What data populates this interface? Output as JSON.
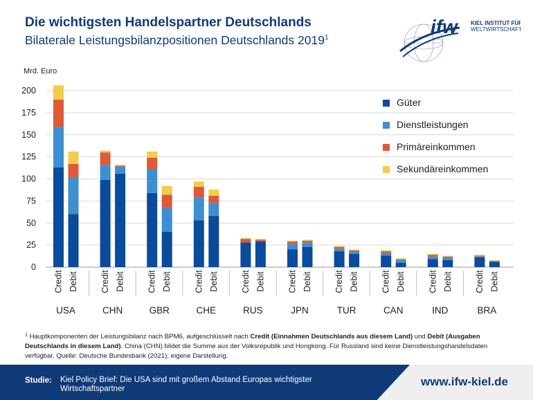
{
  "header": {
    "title": "Die wichtigsten Handelspartner Deutschlands",
    "subtitle": "Bilaterale Leistungsbilanzpositionen Deutschlands 2019",
    "subtitle_ref": "1"
  },
  "logo": {
    "wordmark": "ifw",
    "line1": "KIEL INSTITUT FÜR",
    "line2": "WELTWIRTSCHAFT"
  },
  "colors": {
    "gueter": "#0a4b9b",
    "dienstleistungen": "#3d8fd1",
    "primaer": "#dc5a38",
    "sekundaer": "#f0cd4c",
    "brand": "#0f3a78"
  },
  "chart_data": {
    "type": "bar",
    "stacked": true,
    "unit_label": "Mrd. Euro",
    "ylim": [
      0,
      200
    ],
    "yticks": [
      0,
      25,
      50,
      75,
      100,
      125,
      150,
      175,
      200
    ],
    "grid": true,
    "legend_position": "top-right",
    "groups": [
      "USA",
      "CHN",
      "GBR",
      "CHE",
      "RUS",
      "JPN",
      "TUR",
      "CAN",
      "IND",
      "BRA"
    ],
    "bar_labels": [
      "Credit",
      "Debit"
    ],
    "series": [
      {
        "name": "Güter",
        "color_key": "gueter",
        "credit": [
          113,
          99,
          84,
          53,
          28,
          20,
          18,
          13,
          9,
          11
        ],
        "debit": [
          60,
          106,
          40,
          58,
          29,
          23,
          15,
          5,
          8,
          6
        ]
      },
      {
        "name": "Dienstleistungen",
        "color_key": "dienstleistungen",
        "credit": [
          46,
          17,
          27,
          26,
          0,
          6,
          3,
          3,
          3,
          1
        ],
        "debit": [
          42,
          8,
          27,
          15,
          0,
          5,
          3,
          3,
          3,
          1
        ]
      },
      {
        "name": "Primäreinkommen",
        "color_key": "primaer",
        "credit": [
          31,
          14,
          13,
          12,
          4,
          3,
          2,
          2,
          2,
          1
        ],
        "debit": [
          15,
          1,
          15,
          8,
          2,
          2,
          1,
          1,
          1,
          0
        ]
      },
      {
        "name": "Sekundäreinkommen",
        "color_key": "sekundaer",
        "credit": [
          16,
          2,
          7,
          6,
          1,
          1,
          1,
          1,
          1,
          1
        ],
        "debit": [
          14,
          1,
          10,
          7,
          1,
          1,
          1,
          1,
          1,
          1
        ]
      }
    ]
  },
  "footnote": {
    "ref": "1",
    "text_1": " Hauptkomponenten der Leistungsbilanz nach BPM6, aufgeschlüsselt nach ",
    "credit_bold": "Credit (Einnahmen Deutschlands aus diesem Land)",
    "text_2": " und ",
    "debit_bold": "Debit (Ausgaben Deutschlands in diesem Land)",
    "text_3": ". China (CHN) bildet die Summe aus der Volksrepublik und Hongkong. Für Russland sind keine Dienstleistungshandelsdaten verfügbar. Quelle: Deutsche Bundesbank (2021); eigene Darstellung."
  },
  "footer": {
    "label": "Studie:",
    "text": "Kiel Policy Brief: Die USA sind mit großem Abstand Europas wichtigster Wirtschaftspartner",
    "url": "www.ifw-kiel.de"
  }
}
